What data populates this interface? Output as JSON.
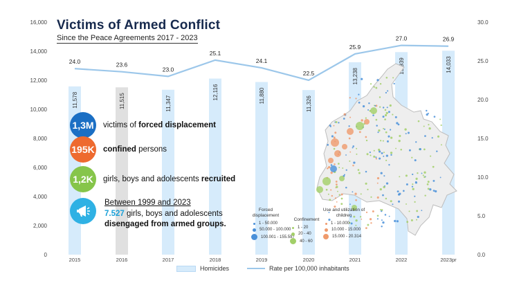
{
  "title": "Victims of Armed Conflict",
  "subtitle": "Since the Peace Agreements 2017 - 2023",
  "colors": {
    "bar": "#d6ebfb",
    "bar_highlight": "#e0e0e0",
    "line": "#9cc7ea",
    "title": "#16294d",
    "blue": "#1b6fc4",
    "orange": "#ee6a2f",
    "green": "#86c54a",
    "cyan": "#2fb1e4"
  },
  "chart_data": {
    "type": "bar",
    "title": "Victims of Armed Conflict",
    "categories": [
      "2015",
      "2016",
      "2017",
      "2018",
      "2019",
      "2020",
      "2021",
      "2022",
      "2023pr"
    ],
    "series": [
      {
        "name": "Homicides",
        "type": "bar",
        "axis": "left",
        "values": [
          11578,
          11515,
          11347,
          12116,
          11880,
          11326,
          13238,
          13939,
          14033
        ],
        "labels": [
          "11,578",
          "11,515",
          "11,347",
          "12,116",
          "11,880",
          "11,326",
          "13,238",
          "13,939",
          "14,033"
        ]
      },
      {
        "name": "Rate per 100,000 inhabitants",
        "type": "line",
        "axis": "right",
        "values": [
          24.0,
          23.6,
          23.0,
          25.1,
          24.1,
          22.5,
          25.9,
          27.0,
          26.9
        ],
        "labels": [
          "24.0",
          "23.6",
          "23.0",
          "25.1",
          "24.1",
          "22.5",
          "25.9",
          "27.0",
          "26.9"
        ]
      }
    ],
    "highlight_index": 1,
    "y_left": {
      "min": 0,
      "max": 16000,
      "ticks": [
        0,
        2000,
        4000,
        6000,
        8000,
        10000,
        12000,
        14000,
        16000
      ],
      "tick_labels": [
        "0",
        "2,000",
        "4,000",
        "6,000",
        "8,000",
        "10,000",
        "12,000",
        "14,000",
        "16,000"
      ]
    },
    "y_right": {
      "min": 0,
      "max": 30,
      "ticks": [
        0,
        5,
        10,
        15,
        20,
        25,
        30
      ],
      "tick_labels": [
        "0.0",
        "5.0",
        "10.0",
        "15.0",
        "20.0",
        "25.0",
        "30.0"
      ]
    },
    "legend": [
      "Homicides",
      "Rate per 100,000 inhabitants"
    ],
    "legend_position": "bottom"
  },
  "stats": [
    {
      "badge": "1,3M",
      "color": "#1b6fc4",
      "pre": "victims of ",
      "bold": "forced displacement",
      "post": ""
    },
    {
      "badge": "195K",
      "color": "#ee6a2f",
      "pre": "",
      "bold": "confined",
      "post": " persons"
    },
    {
      "badge": "1,2K",
      "color": "#86c54a",
      "pre": "girls, boys and adolescents ",
      "bold": "recruited",
      "post": ""
    }
  ],
  "history": {
    "heading": "Between 1999 and 2023",
    "number": "7.527",
    "line1_rest": " girls, boys and adolescents",
    "line2": "disengaged from armed groups."
  },
  "map_legend": {
    "displacement": {
      "title": "Forced displacement",
      "items": [
        "1 - 50.000",
        "50.000 - 100.000",
        "100.001 - 155.597"
      ]
    },
    "confinement": {
      "title": "Confinement",
      "items": [
        "1 - 20",
        "20 - 40",
        "40 - 60"
      ]
    },
    "children": {
      "title": "Use and utilization of children",
      "items": [
        "1 - 10.000",
        "10.000 - 15.000",
        "15.000 - 20.314"
      ]
    }
  }
}
